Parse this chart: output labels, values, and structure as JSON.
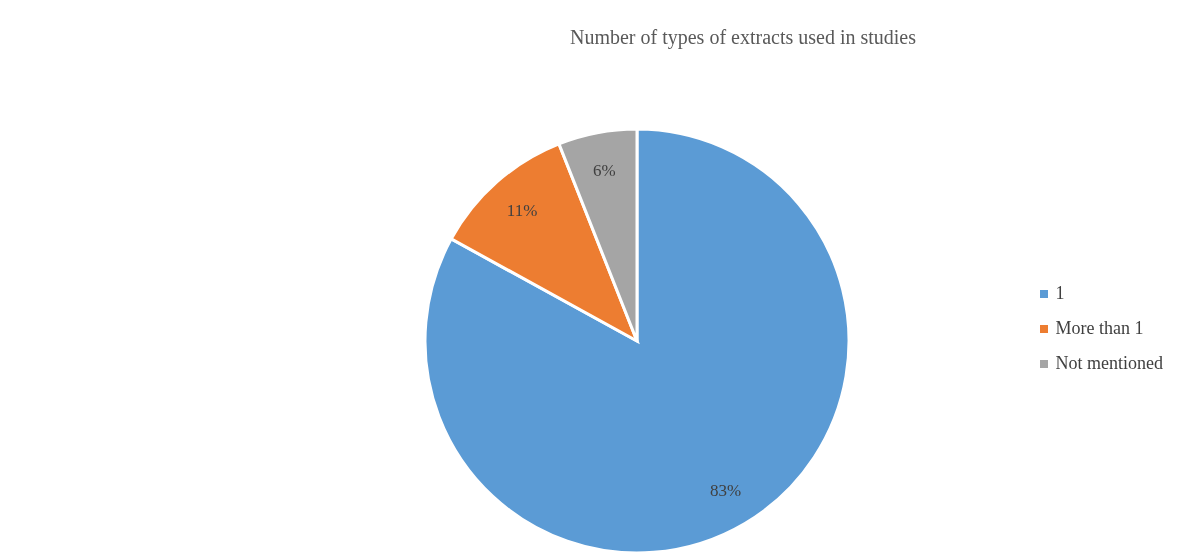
{
  "chart_data": {
    "type": "pie",
    "title": "Number of types of extracts used in studies",
    "categories": [
      "1",
      "More than 1",
      "Not mentioned"
    ],
    "values": [
      83,
      11,
      6
    ],
    "colors": [
      "#5b9bd5",
      "#ed7d31",
      "#a5a5a5"
    ],
    "value_labels": [
      "83%",
      "11%",
      "6%"
    ],
    "legend": "right"
  }
}
